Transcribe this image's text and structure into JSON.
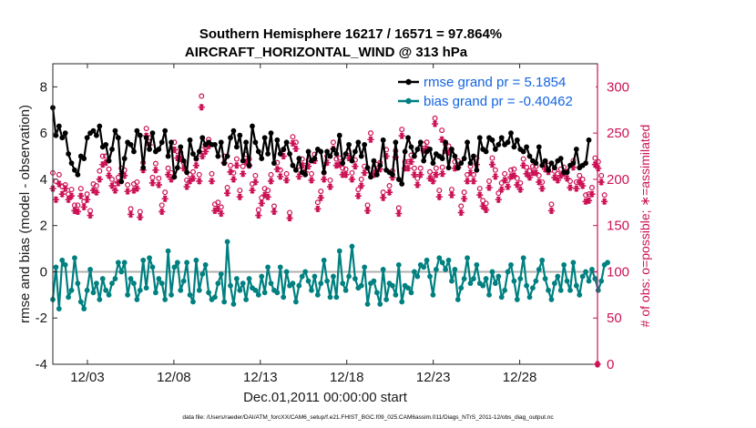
{
  "chart_data": {
    "type": "line",
    "title": "Southern Hemisphere 16217 / 16571 = 97.864%",
    "subtitle": "AIRCRAFT_HORIZONTAL_WIND @ 313 hPa",
    "xlabel": "Dec.01,2011 00:00:00 start",
    "ylabel": "rmse and bias (model - observation)",
    "ylabel_right": "# of obs: o=possible; ∗=assimilated",
    "footnote": "data file: /Users/raeder/DAI/ATM_forcXX/CAM6_setup/f.e21.FHIST_BGC.f09_025.CAM6assim.011/Diags_NTrS_2011-12/obs_diag_output.nc",
    "xlim": [
      1,
      32.5
    ],
    "ylim": [
      -4,
      9
    ],
    "ylim_right": [
      0,
      325
    ],
    "x_ticks": [
      3,
      8,
      13,
      18,
      23,
      28
    ],
    "x_tick_labels": [
      "12/03",
      "12/08",
      "12/13",
      "12/18",
      "12/23",
      "12/28"
    ],
    "y_ticks": [
      -4,
      -2,
      0,
      2,
      4,
      6,
      8
    ],
    "y_tick_labels": [
      "-4",
      "-2",
      "0",
      "2",
      "4",
      "6",
      "8"
    ],
    "y_right_ticks": [
      0,
      50,
      100,
      150,
      200,
      250,
      300
    ],
    "y_right_tick_labels": [
      "0",
      "50",
      "100",
      "150",
      "200",
      "250",
      "300"
    ],
    "legend": [
      {
        "name": "rmse",
        "label": "rmse grand pr = 5.1854",
        "color": "#000000"
      },
      {
        "name": "bias",
        "label": "bias grand pr = -0.40462",
        "color": "#008080"
      }
    ],
    "series": [
      {
        "name": "rmse",
        "color": "#000000",
        "values": [
          7.1,
          5.9,
          6.3,
          5.8,
          6.0,
          5.1,
          4.7,
          4.4,
          4.2,
          5.0,
          4.9,
          5.8,
          6.0,
          6.1,
          5.9,
          6.3,
          5.4,
          5.5,
          4.8,
          5.3,
          6.1,
          5.8,
          3.9,
          4.9,
          5.6,
          5.5,
          5.2,
          6.1,
          5.9,
          4.5,
          5.8,
          5.3,
          6.0,
          5.2,
          5.3,
          5.6,
          6.1,
          5.0,
          5.6,
          4.1,
          4.5,
          5.4,
          4.8,
          4.3,
          5.7,
          5.1,
          4.9,
          5.2,
          5.8,
          5.5,
          5.6,
          5.5,
          5.5,
          5.0,
          5.6,
          4.7,
          5.0,
          5.8,
          6.1,
          5.4,
          5.9,
          4.8,
          5.6,
          4.6,
          6.3,
          5.6,
          5.2,
          4.9,
          5.8,
          5.1,
          6.0,
          4.7,
          5.7,
          5.1,
          5.3,
          5.6,
          5.1,
          4.6,
          4.4,
          4.9,
          4.3,
          4.2,
          5.2,
          4.8,
          4.9,
          5.3,
          5.2,
          4.3,
          5.2,
          5.0,
          5.3,
          5.1,
          5.9,
          4.7,
          5.1,
          5.5,
          4.8,
          5.2,
          5.6,
          5.0,
          5.5,
          4.5,
          4.1,
          4.8,
          4.2,
          4.6,
          5.7,
          4.4,
          4.3,
          4.2,
          5.6,
          4.0,
          3.8,
          5.2,
          5.8,
          5.4,
          5.0,
          5.3,
          5.6,
          4.8,
          5.2,
          5.3,
          4.7,
          5.1,
          5.0,
          4.9,
          5.6,
          4.5,
          5.3,
          5.0,
          4.5,
          4.7,
          4.9,
          5.6,
          4.7,
          5.0,
          4.4,
          5.8,
          5.3,
          5.2,
          5.8,
          5.7,
          5.3,
          5.5,
          5.8,
          5.5,
          5.6,
          6.0,
          5.4,
          5.7,
          5.3,
          5.2,
          5.4,
          5.0,
          4.8,
          4.7,
          5.4,
          4.6,
          4.8,
          4.4,
          4.7,
          4.5,
          4.8,
          4.9,
          4.3,
          4.3,
          4.6,
          4.7,
          5.3,
          4.5,
          4.6,
          4.7,
          5.7
        ]
      },
      {
        "name": "bias",
        "color": "#008080",
        "values": [
          -1.2,
          0.2,
          -1.6,
          0.5,
          0.3,
          -1.1,
          -0.8,
          0.6,
          -0.5,
          -1.3,
          -1.6,
          -0.8,
          0.1,
          -0.9,
          -0.5,
          -1.2,
          -0.3,
          -0.8,
          -1.0,
          -0.5,
          -0.3,
          0.4,
          0.0,
          0.4,
          -1.0,
          -0.3,
          -0.5,
          -1.2,
          -0.8,
          0.5,
          -0.7,
          0.6,
          0.2,
          -0.9,
          -0.3,
          -0.5,
          -1.2,
          0.9,
          -1.0,
          0.2,
          0.4,
          -0.8,
          -0.4,
          0.4,
          -1.0,
          -1.3,
          0.5,
          -0.8,
          -0.1,
          0.3,
          -0.9,
          -1.2,
          -1.1,
          -0.5,
          -0.1,
          -1.3,
          1.3,
          -0.6,
          -1.4,
          -0.3,
          -0.8,
          -0.5,
          -1.2,
          -0.3,
          -0.7,
          -0.8,
          -1.0,
          -0.2,
          -0.9,
          0.2,
          -0.5,
          -0.8,
          -0.9,
          0.2,
          -1.1,
          0.0,
          -0.6,
          -0.5,
          -1.3,
          -0.6,
          -0.2,
          0.0,
          -0.4,
          -0.8,
          -0.2,
          -1.0,
          -0.5,
          0.5,
          -0.4,
          -1.1,
          -0.2,
          -1.1,
          0.9,
          -0.5,
          -0.8,
          -0.2,
          1.1,
          -0.3,
          -0.7,
          -0.6,
          0.2,
          -1.4,
          -0.5,
          -0.4,
          -0.9,
          -1.4,
          0.1,
          -1.2,
          -0.5,
          -0.6,
          -1.0,
          0.3,
          -1.3,
          -0.6,
          -0.7,
          -0.9,
          0.0,
          -0.2,
          0.3,
          0.2,
          0.5,
          -0.2,
          -1.0,
          0.1,
          0.6,
          0.4,
          0.1,
          0.5,
          -0.4,
          0.1,
          -1.2,
          -0.7,
          -0.3,
          0.6,
          -0.5,
          -0.3,
          0.3,
          -0.5,
          -0.6,
          -0.3,
          -1.0,
          0.0,
          -0.5,
          -0.2,
          -1.1,
          -0.8,
          0.0,
          0.3,
          -0.4,
          -1.2,
          -0.3,
          0.6,
          -0.6,
          -1.1,
          -0.7,
          -0.4,
          0.1,
          0.5,
          -0.3,
          -0.8,
          -1.2,
          -0.5,
          -0.2,
          -0.8,
          0.3,
          -0.4,
          -0.8,
          0.4,
          -0.6,
          -1.0,
          -0.2,
          0.0,
          -0.4,
          0.1,
          -0.3,
          -0.8,
          -0.4,
          0.3,
          0.4
        ]
      }
    ],
    "obs_possible": [
      207,
      198,
      205,
      192,
      194,
      184,
      189,
      172,
      172,
      190,
      176,
      184,
      166,
      195,
      193,
      209,
      225,
      225,
      211,
      200,
      195,
      202,
      212,
      210,
      194,
      168,
      195,
      197,
      165,
      218,
      255,
      245,
      202,
      217,
      201,
      172,
      186,
      212,
      207,
      240,
      230,
      229,
      218,
      199,
      205,
      208,
      222,
      205,
      232,
      237,
      243,
      206,
      173,
      175,
      170,
      225,
      191,
      215,
      207,
      222,
      188,
      214,
      227,
      222,
      195,
      204,
      167,
      180,
      190,
      188,
      205,
      171,
      218,
      210,
      232,
      206,
      164,
      246,
      240,
      210,
      222,
      215,
      221,
      206,
      227,
      175,
      187,
      207,
      225,
      199,
      240,
      222,
      223,
      212,
      211,
      230,
      207,
      221,
      189,
      200,
      214,
      172,
      250,
      212,
      216,
      218,
      186,
      232,
      193,
      209,
      231,
      169,
      254,
      219,
      219,
      226,
      212,
      201,
      212,
      238,
      240,
      208,
      205,
      212,
      188,
      213,
      238,
      236,
      189,
      219,
      220,
      171,
      186,
      205,
      214,
      205,
      223,
      190,
      177,
      174,
      198,
      223,
      210,
      185,
      196,
      206,
      199,
      210,
      211,
      201,
      196,
      222,
      213,
      209,
      214,
      214,
      204,
      197,
      218,
      215,
      173,
      209,
      206,
      211,
      213,
      208,
      198,
      220,
      197,
      204,
      200,
      183,
      184,
      191,
      223,
      219,
      204,
      183
    ],
    "obs_assimilated": [
      190,
      178,
      195,
      184,
      190,
      178,
      182,
      166,
      165,
      182,
      170,
      178,
      161,
      188,
      186,
      200,
      216,
      218,
      204,
      193,
      188,
      196,
      206,
      204,
      187,
      162,
      188,
      190,
      159,
      210,
      247,
      237,
      196,
      210,
      194,
      165,
      179,
      205,
      200,
      232,
      223,
      222,
      212,
      192,
      198,
      201,
      215,
      198,
      225,
      230,
      236,
      198,
      166,
      168,
      163,
      218,
      185,
      208,
      200,
      215,
      181,
      206,
      219,
      215,
      188,
      197,
      161,
      174,
      183,
      181,
      198,
      165,
      211,
      203,
      225,
      199,
      158,
      239,
      233,
      203,
      215,
      208,
      214,
      199,
      220,
      168,
      180,
      200,
      218,
      192,
      233,
      215,
      216,
      205,
      205,
      223,
      200,
      214,
      182,
      193,
      207,
      166,
      243,
      205,
      209,
      211,
      180,
      225,
      186,
      202,
      224,
      163,
      247,
      212,
      212,
      219,
      205,
      194,
      205,
      231,
      233,
      201,
      198,
      205,
      181,
      206,
      231,
      229,
      183,
      212,
      213,
      164,
      179,
      198,
      207,
      198,
      216,
      183,
      171,
      167,
      191,
      216,
      203,
      178,
      189,
      199,
      192,
      203,
      204,
      194,
      189,
      215,
      206,
      202,
      207,
      207,
      197,
      190,
      211,
      208,
      166,
      202,
      199,
      204,
      206,
      201,
      191,
      213,
      190,
      197,
      193,
      176,
      177,
      184,
      216,
      212,
      197,
      176
    ],
    "possible_spikes": [
      {
        "x": 9.6,
        "possible": 290,
        "assimilated": 278
      },
      {
        "x": 23.1,
        "possible": 266,
        "assimilated": 260
      },
      {
        "x": 23.5,
        "possible": 253,
        "assimilated": 243
      },
      {
        "x": 32.5,
        "possible": 0,
        "assimilated": 0
      }
    ]
  }
}
